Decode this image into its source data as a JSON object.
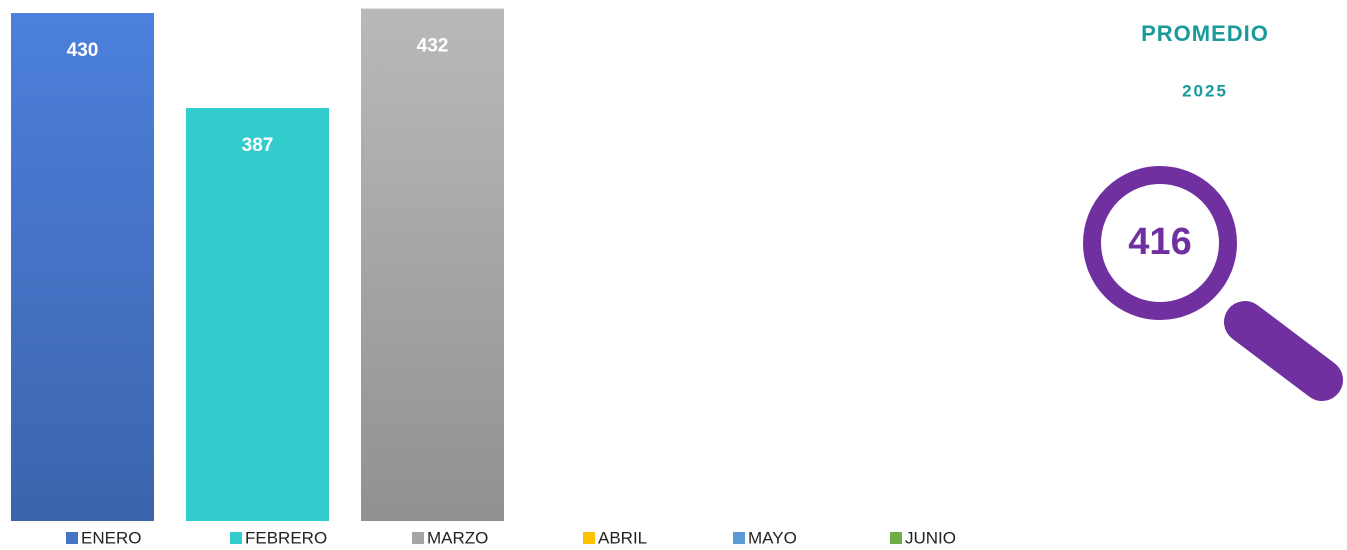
{
  "chart_data": {
    "type": "bar",
    "series": [
      {
        "name": "ENERO",
        "color": "#4472c4",
        "values": [
          430
        ]
      },
      {
        "name": "FEBRERO",
        "color": "#33cccc",
        "values": [
          387
        ]
      },
      {
        "name": "MARZO",
        "color": "#a5a5a5",
        "values": [
          432
        ]
      },
      {
        "name": "ABRIL",
        "color": "#ffc000",
        "values": [
          null
        ]
      },
      {
        "name": "MAYO",
        "color": "#5b9bd5",
        "values": [
          null
        ]
      },
      {
        "name": "JUNIO",
        "color": "#70ad47",
        "values": [
          null
        ]
      }
    ],
    "ylim": [
      200,
      435
    ],
    "legend": "bottom",
    "callout": {
      "title": "PROMEDIO",
      "subtitle": "2025",
      "value": 416,
      "color": "#7030a0",
      "title_color": "#1a9a9a"
    }
  }
}
